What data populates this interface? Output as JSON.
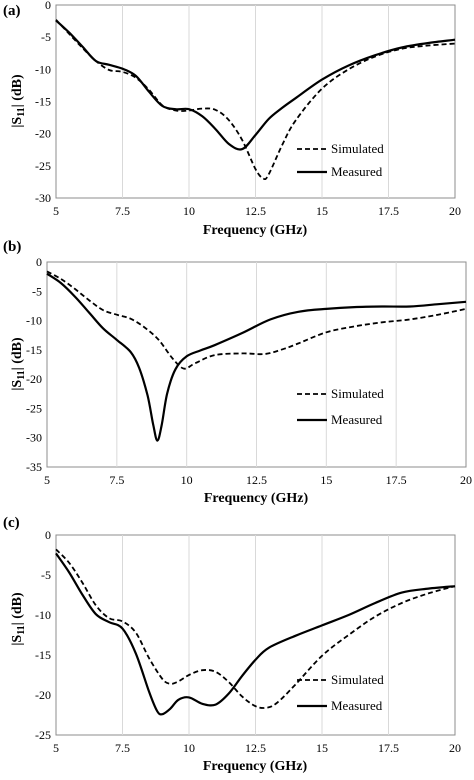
{
  "chart_data": [
    {
      "type": "line",
      "panel_label": "(a)",
      "xlabel": "Frequency (GHz)",
      "ylabel": "|S11| (dB)",
      "ylabel_main": "|S",
      "ylabel_sub": "11",
      "ylabel_tail": "| (dB)",
      "xlim": [
        5,
        20
      ],
      "ylim": [
        -30,
        0
      ],
      "x_ticks": [
        "5",
        "7.5",
        "10",
        "12.5",
        "15",
        "17.5",
        "20"
      ],
      "y_ticks": [
        "0",
        "-5",
        "-10",
        "-15",
        "-20",
        "-25",
        "-30"
      ],
      "grid": "vertical",
      "legend": "bottom-right",
      "series": [
        {
          "name": "Simulated",
          "style": "dashed",
          "x": [
            5,
            5.5,
            6,
            6.5,
            7,
            7.5,
            8,
            8.5,
            9,
            9.5,
            10,
            10.5,
            11,
            11.5,
            12,
            12.5,
            12.8,
            13,
            13.5,
            14,
            15,
            16,
            17,
            18,
            19,
            20
          ],
          "y": [
            -2.3,
            -4.5,
            -6.7,
            -8.7,
            -10.1,
            -10.4,
            -11.3,
            -13.2,
            -15.6,
            -16.4,
            -16.4,
            -16.1,
            -16.3,
            -17.9,
            -21.0,
            -25.5,
            -27.0,
            -26.3,
            -21.8,
            -18.0,
            -13.0,
            -10.0,
            -8.0,
            -6.8,
            -6.3,
            -6.0
          ]
        },
        {
          "name": "Measured",
          "style": "solid",
          "x": [
            5,
            5.5,
            6,
            6.5,
            7,
            7.5,
            8,
            8.5,
            9,
            9.5,
            10,
            10.5,
            11,
            11.5,
            12,
            12.5,
            13,
            13.5,
            14,
            15,
            16,
            17,
            18,
            19,
            20
          ],
          "y": [
            -2.4,
            -4.3,
            -6.5,
            -8.7,
            -9.3,
            -9.9,
            -11.0,
            -13.5,
            -15.7,
            -16.2,
            -16.2,
            -17.3,
            -19.3,
            -21.6,
            -22.4,
            -20.2,
            -17.7,
            -16.0,
            -14.5,
            -11.6,
            -9.4,
            -7.8,
            -6.6,
            -5.9,
            -5.4
          ]
        }
      ]
    },
    {
      "type": "line",
      "panel_label": "(b)",
      "xlabel": "Frequency (GHz)",
      "ylabel": "|S11| (dB)",
      "ylabel_main": "|S",
      "ylabel_sub": "11",
      "ylabel_tail": "| (dB)",
      "xlim": [
        5,
        20
      ],
      "ylim": [
        -35,
        0
      ],
      "x_ticks": [
        "5",
        "7.5",
        "10",
        "12.5",
        "15",
        "17.5",
        "20"
      ],
      "y_ticks": [
        "0",
        "-5",
        "-10",
        "-15",
        "-20",
        "-25",
        "-30",
        "-35"
      ],
      "grid": "vertical",
      "legend": "bottom-right",
      "series": [
        {
          "name": "Simulated",
          "style": "dashed",
          "x": [
            5,
            5.5,
            6,
            6.5,
            7,
            7.5,
            8,
            8.5,
            9,
            9.5,
            9.9,
            10.3,
            11,
            12,
            12.8,
            13.5,
            14,
            15,
            16,
            17,
            18,
            19,
            20
          ],
          "y": [
            -1.6,
            -2.9,
            -4.6,
            -6.5,
            -8.2,
            -9.0,
            -9.7,
            -11.2,
            -13.3,
            -16.5,
            -18.2,
            -17.3,
            -15.9,
            -15.6,
            -15.7,
            -14.8,
            -13.9,
            -12.0,
            -11.0,
            -10.3,
            -9.8,
            -9.0,
            -8.0
          ]
        },
        {
          "name": "Measured",
          "style": "solid",
          "x": [
            5,
            5.5,
            6,
            6.5,
            7,
            7.5,
            8,
            8.3,
            8.6,
            8.8,
            8.95,
            9.1,
            9.3,
            9.6,
            10,
            10.5,
            11,
            12,
            13,
            14,
            15,
            16,
            17,
            18,
            19,
            20
          ],
          "y": [
            -2.0,
            -3.6,
            -5.9,
            -8.6,
            -11.3,
            -13.3,
            -15.4,
            -18.1,
            -22.8,
            -27.7,
            -30.5,
            -28.0,
            -22.5,
            -18.3,
            -16.1,
            -15.1,
            -14.2,
            -12.1,
            -9.8,
            -8.5,
            -8.0,
            -7.7,
            -7.6,
            -7.6,
            -7.2,
            -6.8
          ]
        }
      ]
    },
    {
      "type": "line",
      "panel_label": "(c)",
      "xlabel": "Frequency (GHz)",
      "ylabel": "|S11| (dB)",
      "ylabel_main": "|S",
      "ylabel_sub": "11",
      "ylabel_tail": "| (dB)",
      "xlim": [
        5,
        20
      ],
      "ylim": [
        -25,
        0
      ],
      "x_ticks": [
        "5",
        "7.5",
        "10",
        "12.5",
        "15",
        "17.5",
        "20"
      ],
      "y_ticks": [
        "0",
        "-5",
        "-10",
        "-15",
        "-20",
        "-25"
      ],
      "grid": "vertical",
      "legend": "bottom-right",
      "series": [
        {
          "name": "Simulated",
          "style": "dashed",
          "x": [
            5,
            5.5,
            6,
            6.5,
            7,
            7.5,
            8,
            8.5,
            9,
            9.3,
            9.6,
            10,
            10.5,
            11,
            11.5,
            12,
            12.5,
            12.9,
            13.3,
            14,
            15,
            16,
            17,
            18,
            19,
            20
          ],
          "y": [
            -1.8,
            -3.5,
            -6.0,
            -8.8,
            -10.4,
            -10.8,
            -12.2,
            -15.4,
            -18.0,
            -18.6,
            -18.3,
            -17.5,
            -16.9,
            -17.1,
            -18.4,
            -20.2,
            -21.4,
            -21.6,
            -21.0,
            -18.7,
            -15.1,
            -12.5,
            -10.2,
            -8.5,
            -7.3,
            -6.4
          ]
        },
        {
          "name": "Measured",
          "style": "solid",
          "x": [
            5,
            5.5,
            6,
            6.5,
            7,
            7.5,
            8,
            8.5,
            8.8,
            9,
            9.3,
            9.6,
            10,
            10.5,
            11,
            11.5,
            12,
            12.5,
            13,
            14,
            15,
            16,
            17,
            18,
            19,
            20
          ],
          "y": [
            -2.3,
            -4.7,
            -7.5,
            -9.9,
            -10.9,
            -11.7,
            -14.8,
            -19.6,
            -22.0,
            -22.4,
            -21.7,
            -20.6,
            -20.3,
            -21.1,
            -21.2,
            -19.8,
            -17.6,
            -15.6,
            -14.1,
            -12.6,
            -11.3,
            -10.0,
            -8.5,
            -7.2,
            -6.7,
            -6.4
          ]
        }
      ]
    }
  ]
}
